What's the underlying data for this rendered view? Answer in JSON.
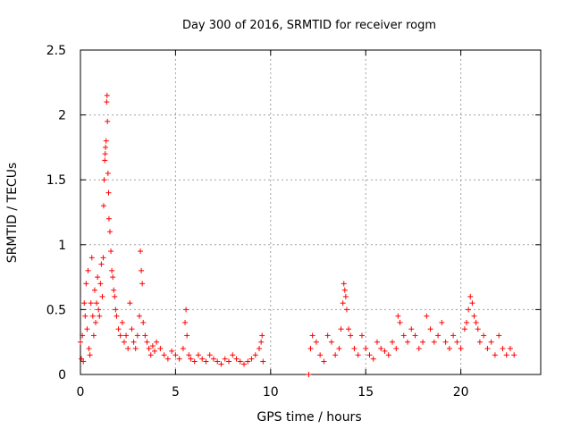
{
  "chart_data": {
    "type": "scatter",
    "title": "Day 300 of 2016, SRMTID for receiver rogm",
    "xlabel": "GPS time / hours",
    "ylabel": "SRMTID / TECUs",
    "xlim": [
      0,
      24.2
    ],
    "ylim": [
      0,
      2.5
    ],
    "xticks": [
      "0",
      "5",
      "10",
      "15",
      "20"
    ],
    "yticks": [
      "0",
      "0.5",
      "1",
      "1.5",
      "2",
      "2.5"
    ],
    "grid": true,
    "marker": "plus",
    "color": "#ff0000",
    "series": [
      {
        "name": "SRMTID",
        "x": [
          0.0,
          0.05,
          0.1,
          0.15,
          0.2,
          0.25,
          0.3,
          0.35,
          0.4,
          0.45,
          0.5,
          0.55,
          0.6,
          0.65,
          0.7,
          0.75,
          0.8,
          0.85,
          0.9,
          0.95,
          1.0,
          1.05,
          1.1,
          1.15,
          1.2,
          1.22,
          1.25,
          1.28,
          1.3,
          1.32,
          1.35,
          1.38,
          1.4,
          1.42,
          1.45,
          1.48,
          1.5,
          1.55,
          1.6,
          1.65,
          1.7,
          1.75,
          1.8,
          1.85,
          1.9,
          2.0,
          2.1,
          2.2,
          2.3,
          2.4,
          2.5,
          2.6,
          2.7,
          2.8,
          2.9,
          3.0,
          3.1,
          3.15,
          3.2,
          3.25,
          3.3,
          3.4,
          3.5,
          3.6,
          3.7,
          3.8,
          3.9,
          4.0,
          4.2,
          4.4,
          4.6,
          4.8,
          5.0,
          5.2,
          5.4,
          5.5,
          5.55,
          5.6,
          5.7,
          5.8,
          6.0,
          6.2,
          6.4,
          6.6,
          6.8,
          7.0,
          7.2,
          7.4,
          7.6,
          7.8,
          8.0,
          8.2,
          8.4,
          8.6,
          8.8,
          9.0,
          9.2,
          9.4,
          9.5,
          9.55,
          9.6,
          12.0,
          12.1,
          12.2,
          12.4,
          12.6,
          12.8,
          13.0,
          13.2,
          13.4,
          13.6,
          13.7,
          13.8,
          13.85,
          13.9,
          13.95,
          14.0,
          14.1,
          14.2,
          14.4,
          14.6,
          14.8,
          15.0,
          15.2,
          15.4,
          15.6,
          15.8,
          16.0,
          16.2,
          16.4,
          16.6,
          16.7,
          16.8,
          17.0,
          17.2,
          17.4,
          17.6,
          17.8,
          18.0,
          18.2,
          18.4,
          18.6,
          18.8,
          19.0,
          19.2,
          19.4,
          19.6,
          19.8,
          20.0,
          20.2,
          20.3,
          20.4,
          20.5,
          20.6,
          20.7,
          20.8,
          20.9,
          21.0,
          21.2,
          21.4,
          21.6,
          21.8,
          22.0,
          22.2,
          22.4,
          22.6,
          22.8
        ],
        "y": [
          0.25,
          0.12,
          0.3,
          0.1,
          0.55,
          0.45,
          0.7,
          0.35,
          0.8,
          0.2,
          0.15,
          0.55,
          0.9,
          0.45,
          0.3,
          0.65,
          0.4,
          0.55,
          0.75,
          0.5,
          0.45,
          0.7,
          0.85,
          0.6,
          0.9,
          1.3,
          1.5,
          1.65,
          1.7,
          1.75,
          1.8,
          2.1,
          2.15,
          1.95,
          1.55,
          1.4,
          1.2,
          1.1,
          0.95,
          0.8,
          0.75,
          0.65,
          0.6,
          0.5,
          0.45,
          0.35,
          0.3,
          0.4,
          0.25,
          0.3,
          0.2,
          0.55,
          0.35,
          0.25,
          0.2,
          0.3,
          0.45,
          0.95,
          0.8,
          0.7,
          0.4,
          0.3,
          0.25,
          0.2,
          0.15,
          0.22,
          0.18,
          0.25,
          0.2,
          0.15,
          0.12,
          0.18,
          0.15,
          0.12,
          0.2,
          0.4,
          0.5,
          0.3,
          0.15,
          0.12,
          0.1,
          0.15,
          0.12,
          0.1,
          0.15,
          0.12,
          0.1,
          0.08,
          0.12,
          0.1,
          0.15,
          0.12,
          0.1,
          0.08,
          0.1,
          0.12,
          0.15,
          0.2,
          0.25,
          0.3,
          0.1,
          0.0,
          0.2,
          0.3,
          0.25,
          0.15,
          0.1,
          0.3,
          0.25,
          0.15,
          0.2,
          0.35,
          0.55,
          0.7,
          0.65,
          0.6,
          0.5,
          0.35,
          0.3,
          0.2,
          0.15,
          0.3,
          0.2,
          0.15,
          0.12,
          0.25,
          0.2,
          0.18,
          0.15,
          0.25,
          0.2,
          0.45,
          0.4,
          0.3,
          0.25,
          0.35,
          0.3,
          0.2,
          0.25,
          0.45,
          0.35,
          0.25,
          0.3,
          0.4,
          0.25,
          0.2,
          0.3,
          0.25,
          0.2,
          0.35,
          0.4,
          0.5,
          0.6,
          0.55,
          0.45,
          0.4,
          0.35,
          0.25,
          0.3,
          0.2,
          0.25,
          0.15,
          0.3,
          0.2,
          0.15,
          0.2,
          0.15
        ]
      }
    ]
  }
}
